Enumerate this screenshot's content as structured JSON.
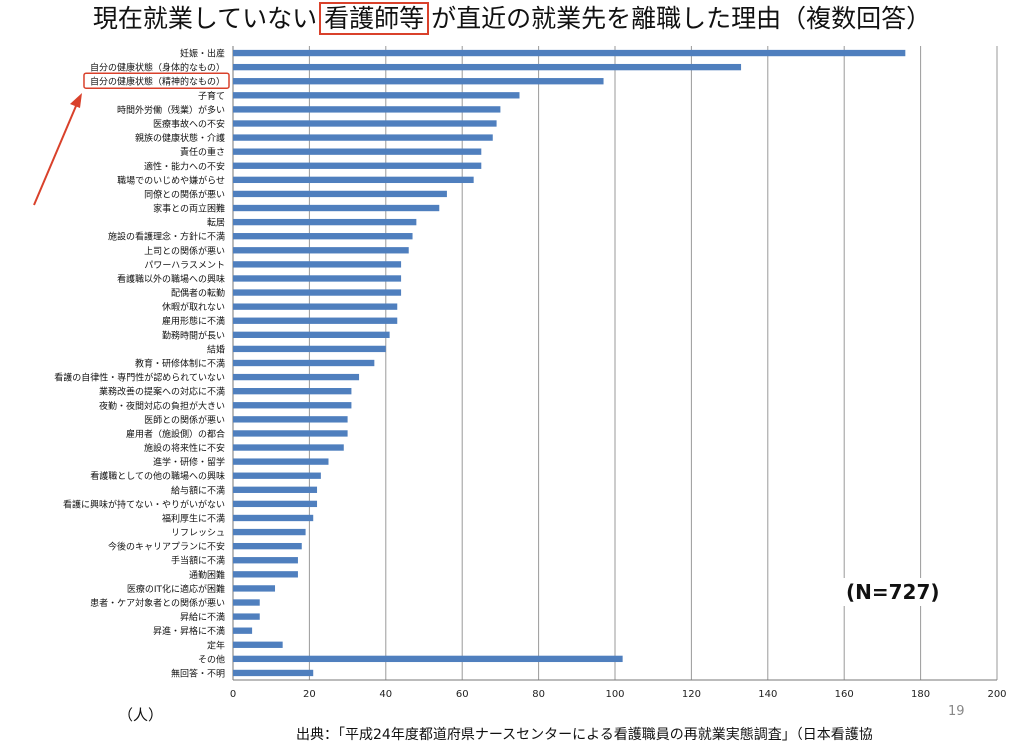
{
  "title": {
    "before": "現在就業していない",
    "highlight": "看護師等",
    "after": "が直近の就業先を離職した理由（複数回答）"
  },
  "sample_size": "(N=727)",
  "unit_label": "（人）",
  "page_number": "19",
  "source": "出典：「平成24年度都道府県ナースセンターによる看護職員の再就業実態調査」（日本看護協",
  "highlight_color": "#d9412b",
  "chart_data": {
    "type": "bar",
    "orientation": "horizontal",
    "title": "",
    "xlabel": "（人）",
    "ylabel": "",
    "xlim": [
      0,
      200
    ],
    "xticks": [
      0,
      20,
      40,
      60,
      80,
      100,
      120,
      140,
      160,
      180,
      200
    ],
    "grid": true,
    "bar_color": "#4f7fbe",
    "highlighted_category": "自分の健康状態（精神的なもの）",
    "categories": [
      "妊娠・出産",
      "自分の健康状態（身体的なもの）",
      "自分の健康状態（精神的なもの）",
      "子育て",
      "時間外労働（残業）が多い",
      "医療事故への不安",
      "親族の健康状態・介護",
      "責任の重さ",
      "適性・能力への不安",
      "職場でのいじめや嫌がらせ",
      "同僚との関係が悪い",
      "家事との両立困難",
      "転居",
      "施設の看護理念・方針に不満",
      "上司との関係が悪い",
      "パワーハラスメント",
      "看護職以外の職場への興味",
      "配偶者の転勤",
      "休暇が取れない",
      "雇用形態に不満",
      "勤務時間が長い",
      "結婚",
      "教育・研修体制に不満",
      "看護の自律性・専門性が認められていない",
      "業務改善の提案への対応に不満",
      "夜勤・夜間対応の負担が大きい",
      "医師との関係が悪い",
      "雇用者（施設側）の都合",
      "施設の将来性に不安",
      "進学・研修・留学",
      "看護職としての他の職場への興味",
      "給与額に不満",
      "看護に興味が持てない・やりがいがない",
      "福利厚生に不満",
      "リフレッシュ",
      "今後のキャリアプランに不安",
      "手当額に不満",
      "通勤困難",
      "医療のIT化に適応が困難",
      "患者・ケア対象者との関係が悪い",
      "昇給に不満",
      "昇進・昇格に不満",
      "定年",
      "その他",
      "無回答・不明"
    ],
    "values": [
      176,
      133,
      97,
      75,
      70,
      69,
      68,
      65,
      65,
      63,
      56,
      54,
      48,
      47,
      46,
      44,
      44,
      44,
      43,
      43,
      41,
      40,
      37,
      33,
      31,
      31,
      30,
      30,
      29,
      25,
      23,
      22,
      22,
      21,
      19,
      18,
      17,
      17,
      11,
      7,
      7,
      5,
      13,
      102,
      21
    ]
  }
}
